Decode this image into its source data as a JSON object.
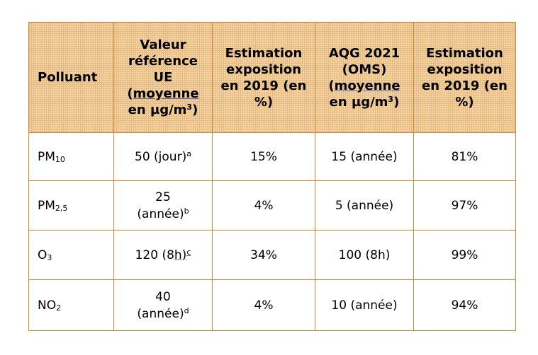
{
  "header": {
    "polluant": "Polluant",
    "valeur_line1": "Valeur",
    "valeur_line2": "référence",
    "valeur_line3": "UE",
    "valeur_paren_open": "(",
    "valeur_moyenne": "moyenne",
    "valeur_unit": "en µg/m",
    "valeur_unit_sup": "3",
    "valeur_paren_close": ")",
    "estimation1": "Estimation exposition en 2019 (en %)",
    "aqg_line1": "AQG 2021",
    "aqg_line2": "(OMS)",
    "aqg_paren_open": "(",
    "aqg_moyenne": "moyenne",
    "aqg_unit": "en µg/m",
    "aqg_unit_sup": "3",
    "aqg_paren_close": ")",
    "estimation2": "Estimation exposition en 2019 (en %)"
  },
  "rows": [
    {
      "pol_base": "PM",
      "pol_sub": "10",
      "ue_value": "50 (jour)",
      "ue_note": "a",
      "expo_ue": "15%",
      "aqg": "15 (année)",
      "expo_aqg": "81%"
    },
    {
      "pol_base": "PM",
      "pol_sub": "2,5",
      "ue_line1": "25",
      "ue_line2": "(année)",
      "ue_note": "b",
      "expo_ue": "4%",
      "aqg": "5 (année)",
      "expo_aqg": "97%"
    },
    {
      "pol_base": "O",
      "pol_sub": "3",
      "ue_pre": "120 (8",
      "ue_link": "h)",
      "ue_note": "c",
      "expo_ue": "34%",
      "aqg": "100 (8h)",
      "expo_aqg": "99%"
    },
    {
      "pol_base": "NO",
      "pol_sub": "2",
      "ue_line1": "40",
      "ue_line2": "(année)",
      "ue_note": "d",
      "expo_ue": "4%",
      "aqg": "10 (année)",
      "expo_aqg": "94%"
    }
  ]
}
